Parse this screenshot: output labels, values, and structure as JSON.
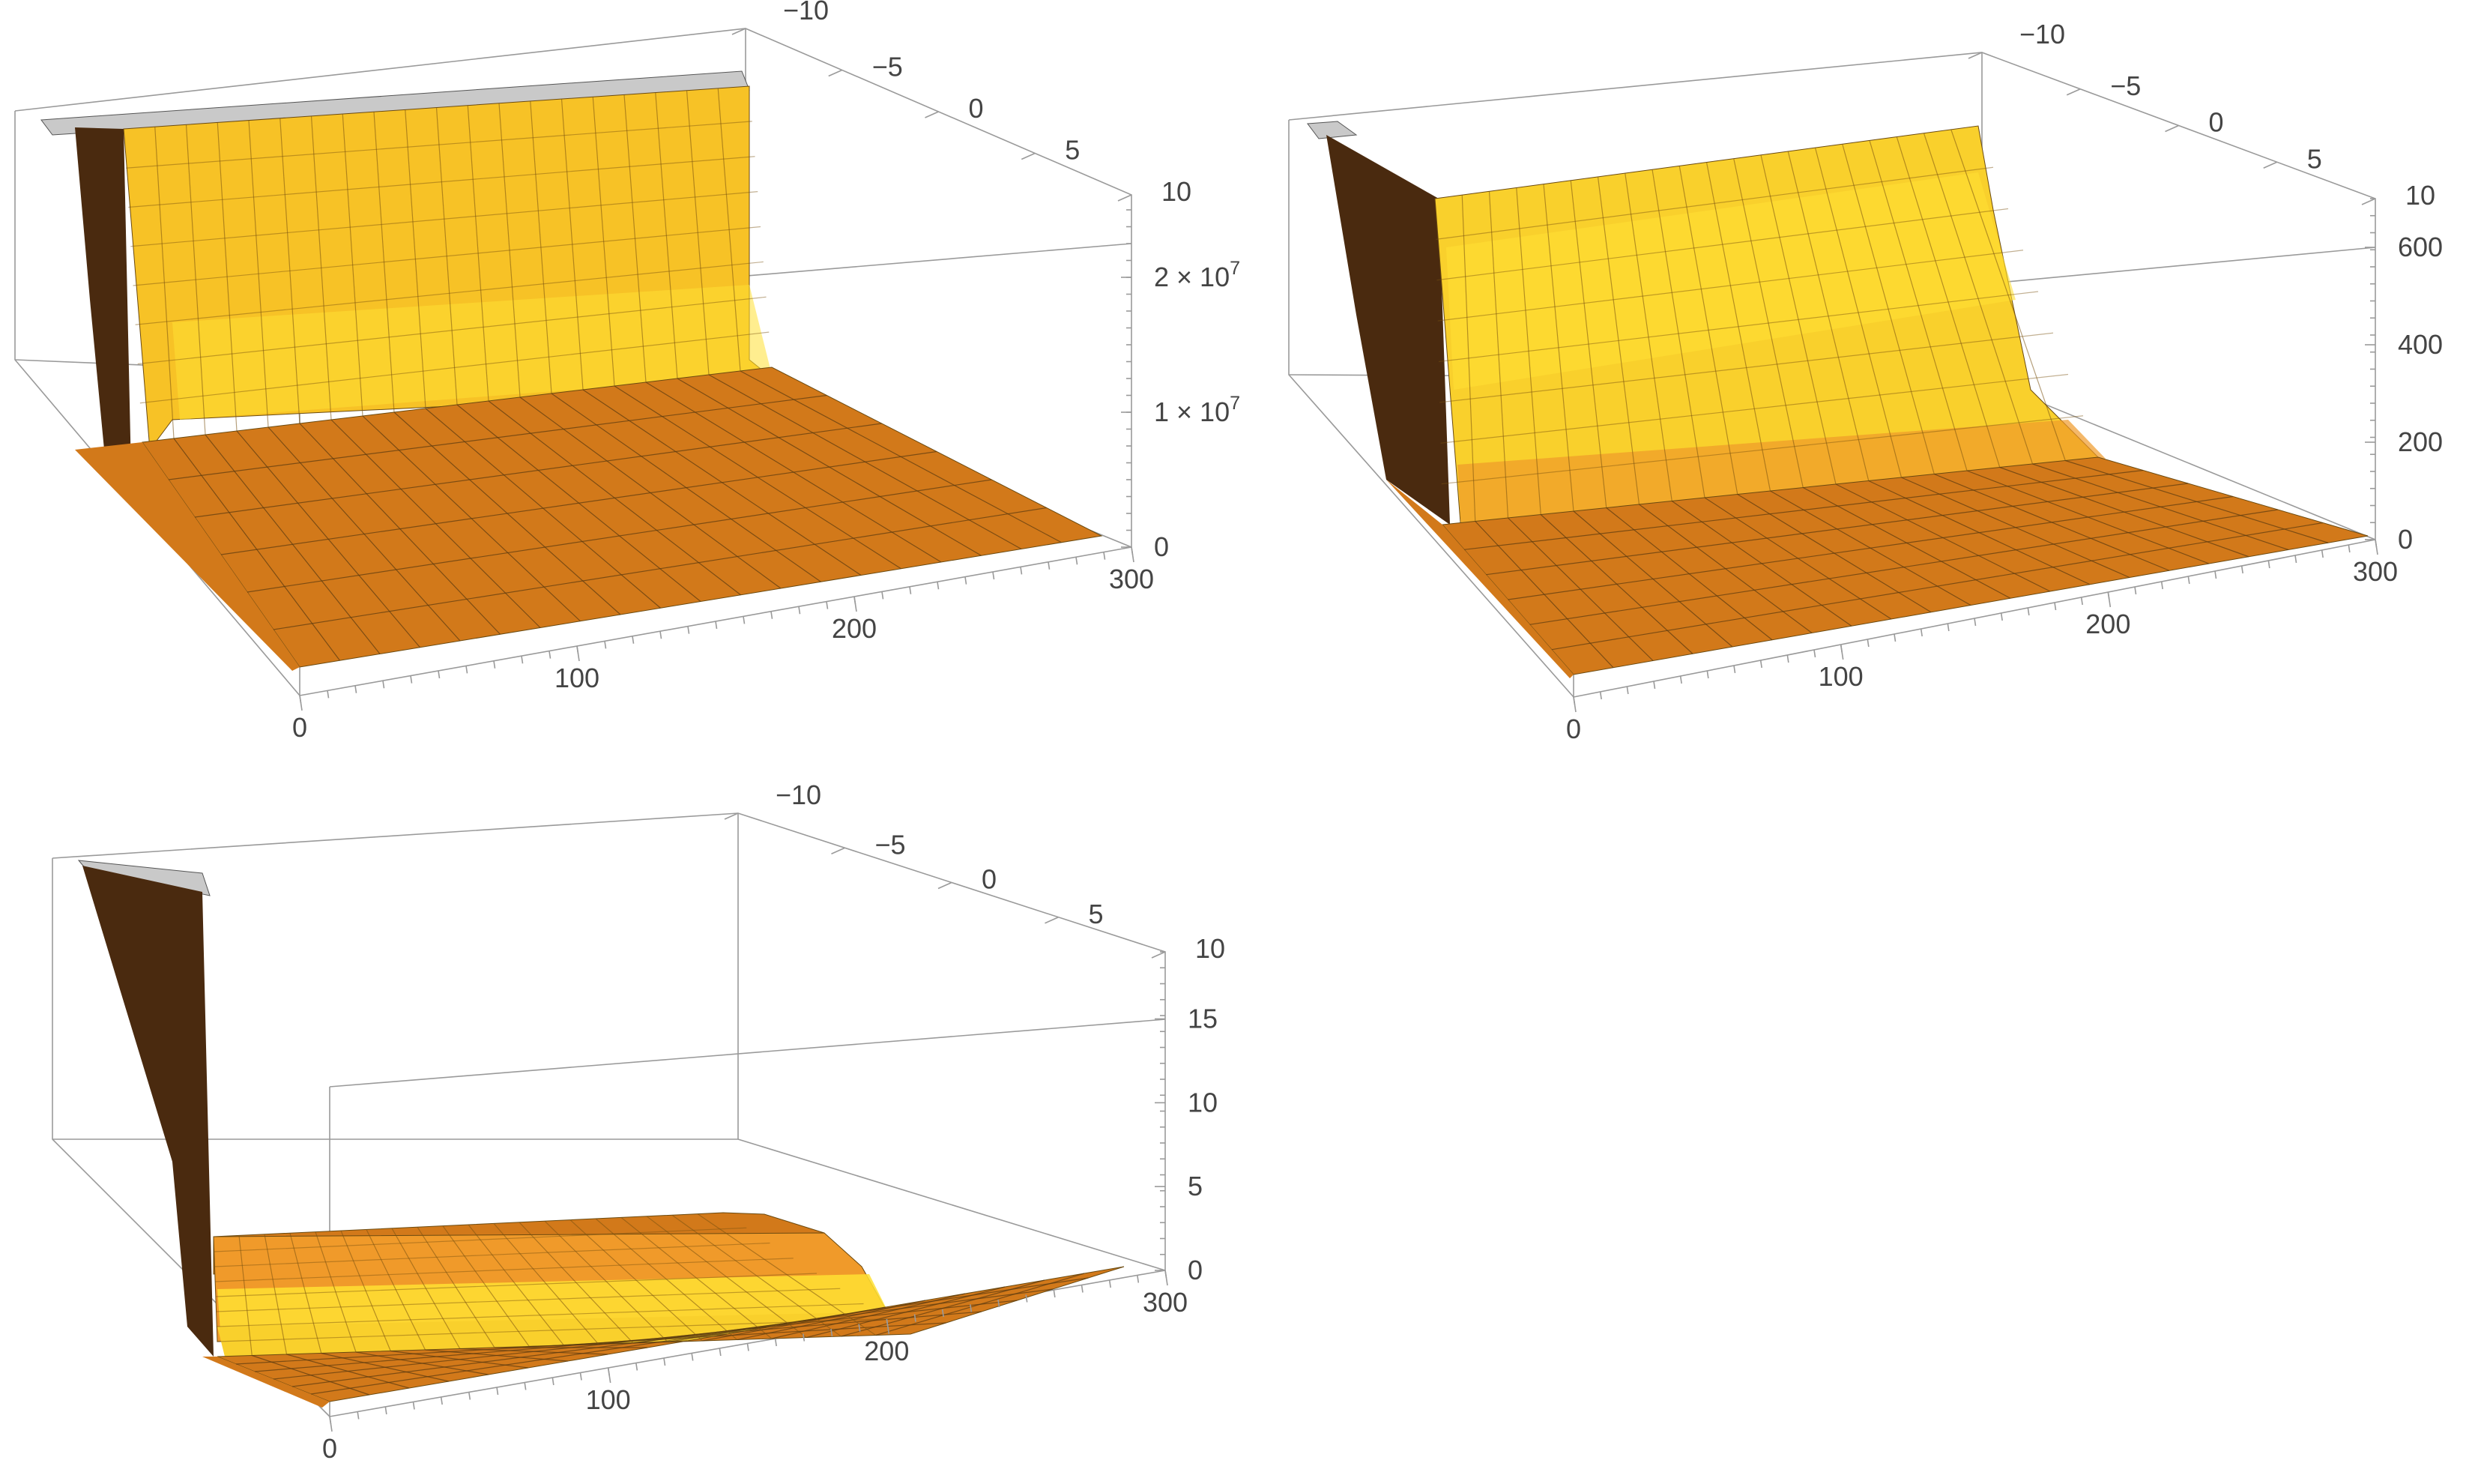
{
  "chart_data": [
    {
      "type": "surface3d",
      "x_axis": {
        "ticks": [
          "0",
          "100",
          "200",
          "300"
        ],
        "range": [
          0,
          300
        ]
      },
      "y_axis": {
        "ticks": [
          "−10",
          "−5",
          "0",
          "5",
          "10"
        ],
        "range": [
          -10,
          10
        ]
      },
      "z_axis": {
        "ticks": [
          "0",
          "1 × 10",
          "2 × 10"
        ],
        "tick_exponents": [
          "",
          "7",
          "7"
        ],
        "range": [
          0,
          25000000
        ]
      },
      "surface_colors": {
        "floor": "#d2791a",
        "wall": "#f7c226",
        "ridge": "#ffe033",
        "cap": "#c9c9c9",
        "side": "#4a2a0f"
      }
    },
    {
      "type": "surface3d",
      "x_axis": {
        "ticks": [
          "0",
          "100",
          "200",
          "300"
        ],
        "range": [
          0,
          300
        ]
      },
      "y_axis": {
        "ticks": [
          "−10",
          "−5",
          "0",
          "5",
          "10"
        ],
        "range": [
          -10,
          10
        ]
      },
      "z_axis": {
        "ticks": [
          "0",
          "200",
          "400",
          "600"
        ],
        "tick_exponents": [
          "",
          "",
          "",
          ""
        ],
        "range": [
          0,
          700
        ]
      },
      "surface_colors": {
        "floor": "#d2791a",
        "wall": "#f9d02c",
        "ridge": "#ffe033",
        "cap": "#c9c9c9",
        "side": "#4a2a0f"
      }
    },
    {
      "type": "surface3d",
      "x_axis": {
        "ticks": [
          "0",
          "100",
          "200",
          "300"
        ],
        "range": [
          0,
          300
        ]
      },
      "y_axis": {
        "ticks": [
          "−10",
          "−5",
          "0",
          "5",
          "10"
        ],
        "range": [
          -10,
          10
        ]
      },
      "z_axis": {
        "ticks": [
          "0",
          "5",
          "10",
          "15"
        ],
        "tick_exponents": [
          "",
          "",
          "",
          ""
        ],
        "range": [
          0,
          19
        ]
      },
      "surface_colors": {
        "floor": "#d2791a",
        "wall": "#f9d02c",
        "ridge": "#ffe033",
        "cap": "#c9c9c9",
        "side": "#4a2a0f"
      }
    }
  ]
}
